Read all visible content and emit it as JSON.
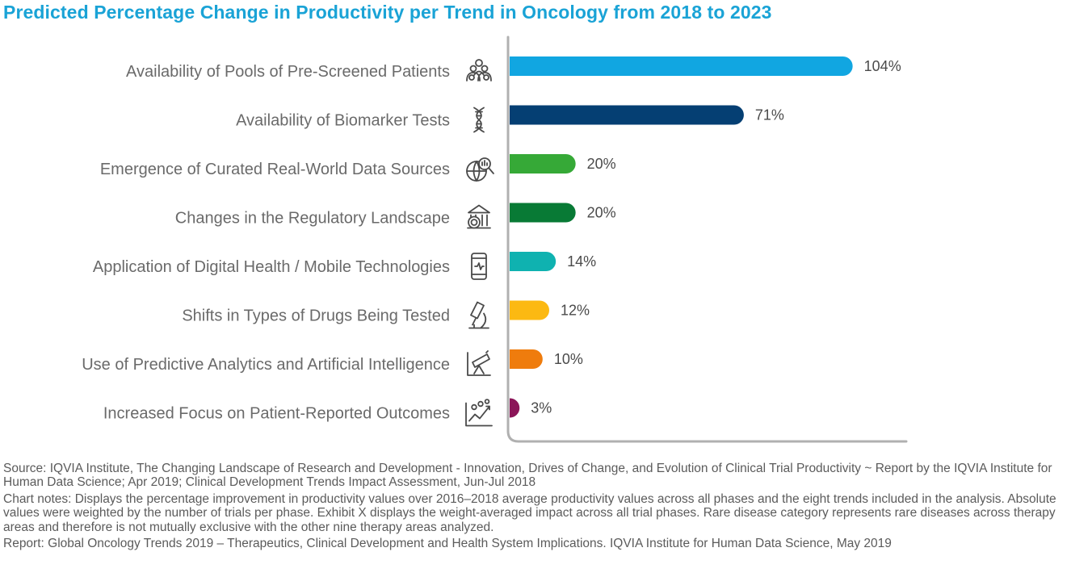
{
  "chart_data": {
    "type": "bar",
    "orientation": "horizontal",
    "title": "Predicted Percentage Change in Productivity per Trend in Oncology from 2018 to 2023",
    "categories": [
      "Availability of Pools of Pre-Screened Patients",
      "Availability of Biomarker Tests",
      "Emergence of Curated Real-World Data Sources",
      "Changes in the Regulatory Landscape",
      "Application of Digital Health / Mobile Technologies",
      "Shifts in Types of Drugs Being Tested",
      "Use of Predictive Analytics and Artificial Intelligence",
      "Increased Focus on Patient-Reported Outcomes"
    ],
    "values": [
      104,
      71,
      20,
      20,
      14,
      12,
      10,
      3
    ],
    "value_labels": [
      "104%",
      "71%",
      "20%",
      "20%",
      "14%",
      "12%",
      "10%",
      "3%"
    ],
    "colors": [
      "#11a6e1",
      "#053f73",
      "#36a937",
      "#087a35",
      "#0fb2b0",
      "#fcb912",
      "#ef7c0d",
      "#8b1558"
    ],
    "icons": [
      "patient-group-icon",
      "dna-icon",
      "globe-search-icon",
      "regulatory-building-icon",
      "mobile-health-icon",
      "microscope-icon",
      "telescope-analytics-icon",
      "patient-outcomes-icon"
    ],
    "xlim": [
      0,
      120
    ],
    "grid": false,
    "legend": "none"
  },
  "footnotes": {
    "source": "Source: IQVIA Institute, The Changing Landscape of Research and Development - Innovation, Drives of Change, and Evolution of Clinical Trial Productivity ~ Report by the IQVIA Institute for Human Data Science; Apr 2019; Clinical Development Trends Impact Assessment, Jun-Jul 2018",
    "notes": "Chart notes: Displays the percentage improvement in productivity values over 2016–2018 average productivity values across all phases and the eight trends included in the analysis. Absolute values were weighted by the number of trials per phase. Exhibit X displays the weight-averaged impact across all trial phases. Rare disease category represents rare diseases across therapy areas and therefore is not mutually exclusive with the other nine therapy areas analyzed.",
    "report": "Report: Global Oncology Trends 2019 – Therapeutics, Clinical Development and Health System Implications. IQVIA Institute for Human Data Science, May 2019"
  }
}
